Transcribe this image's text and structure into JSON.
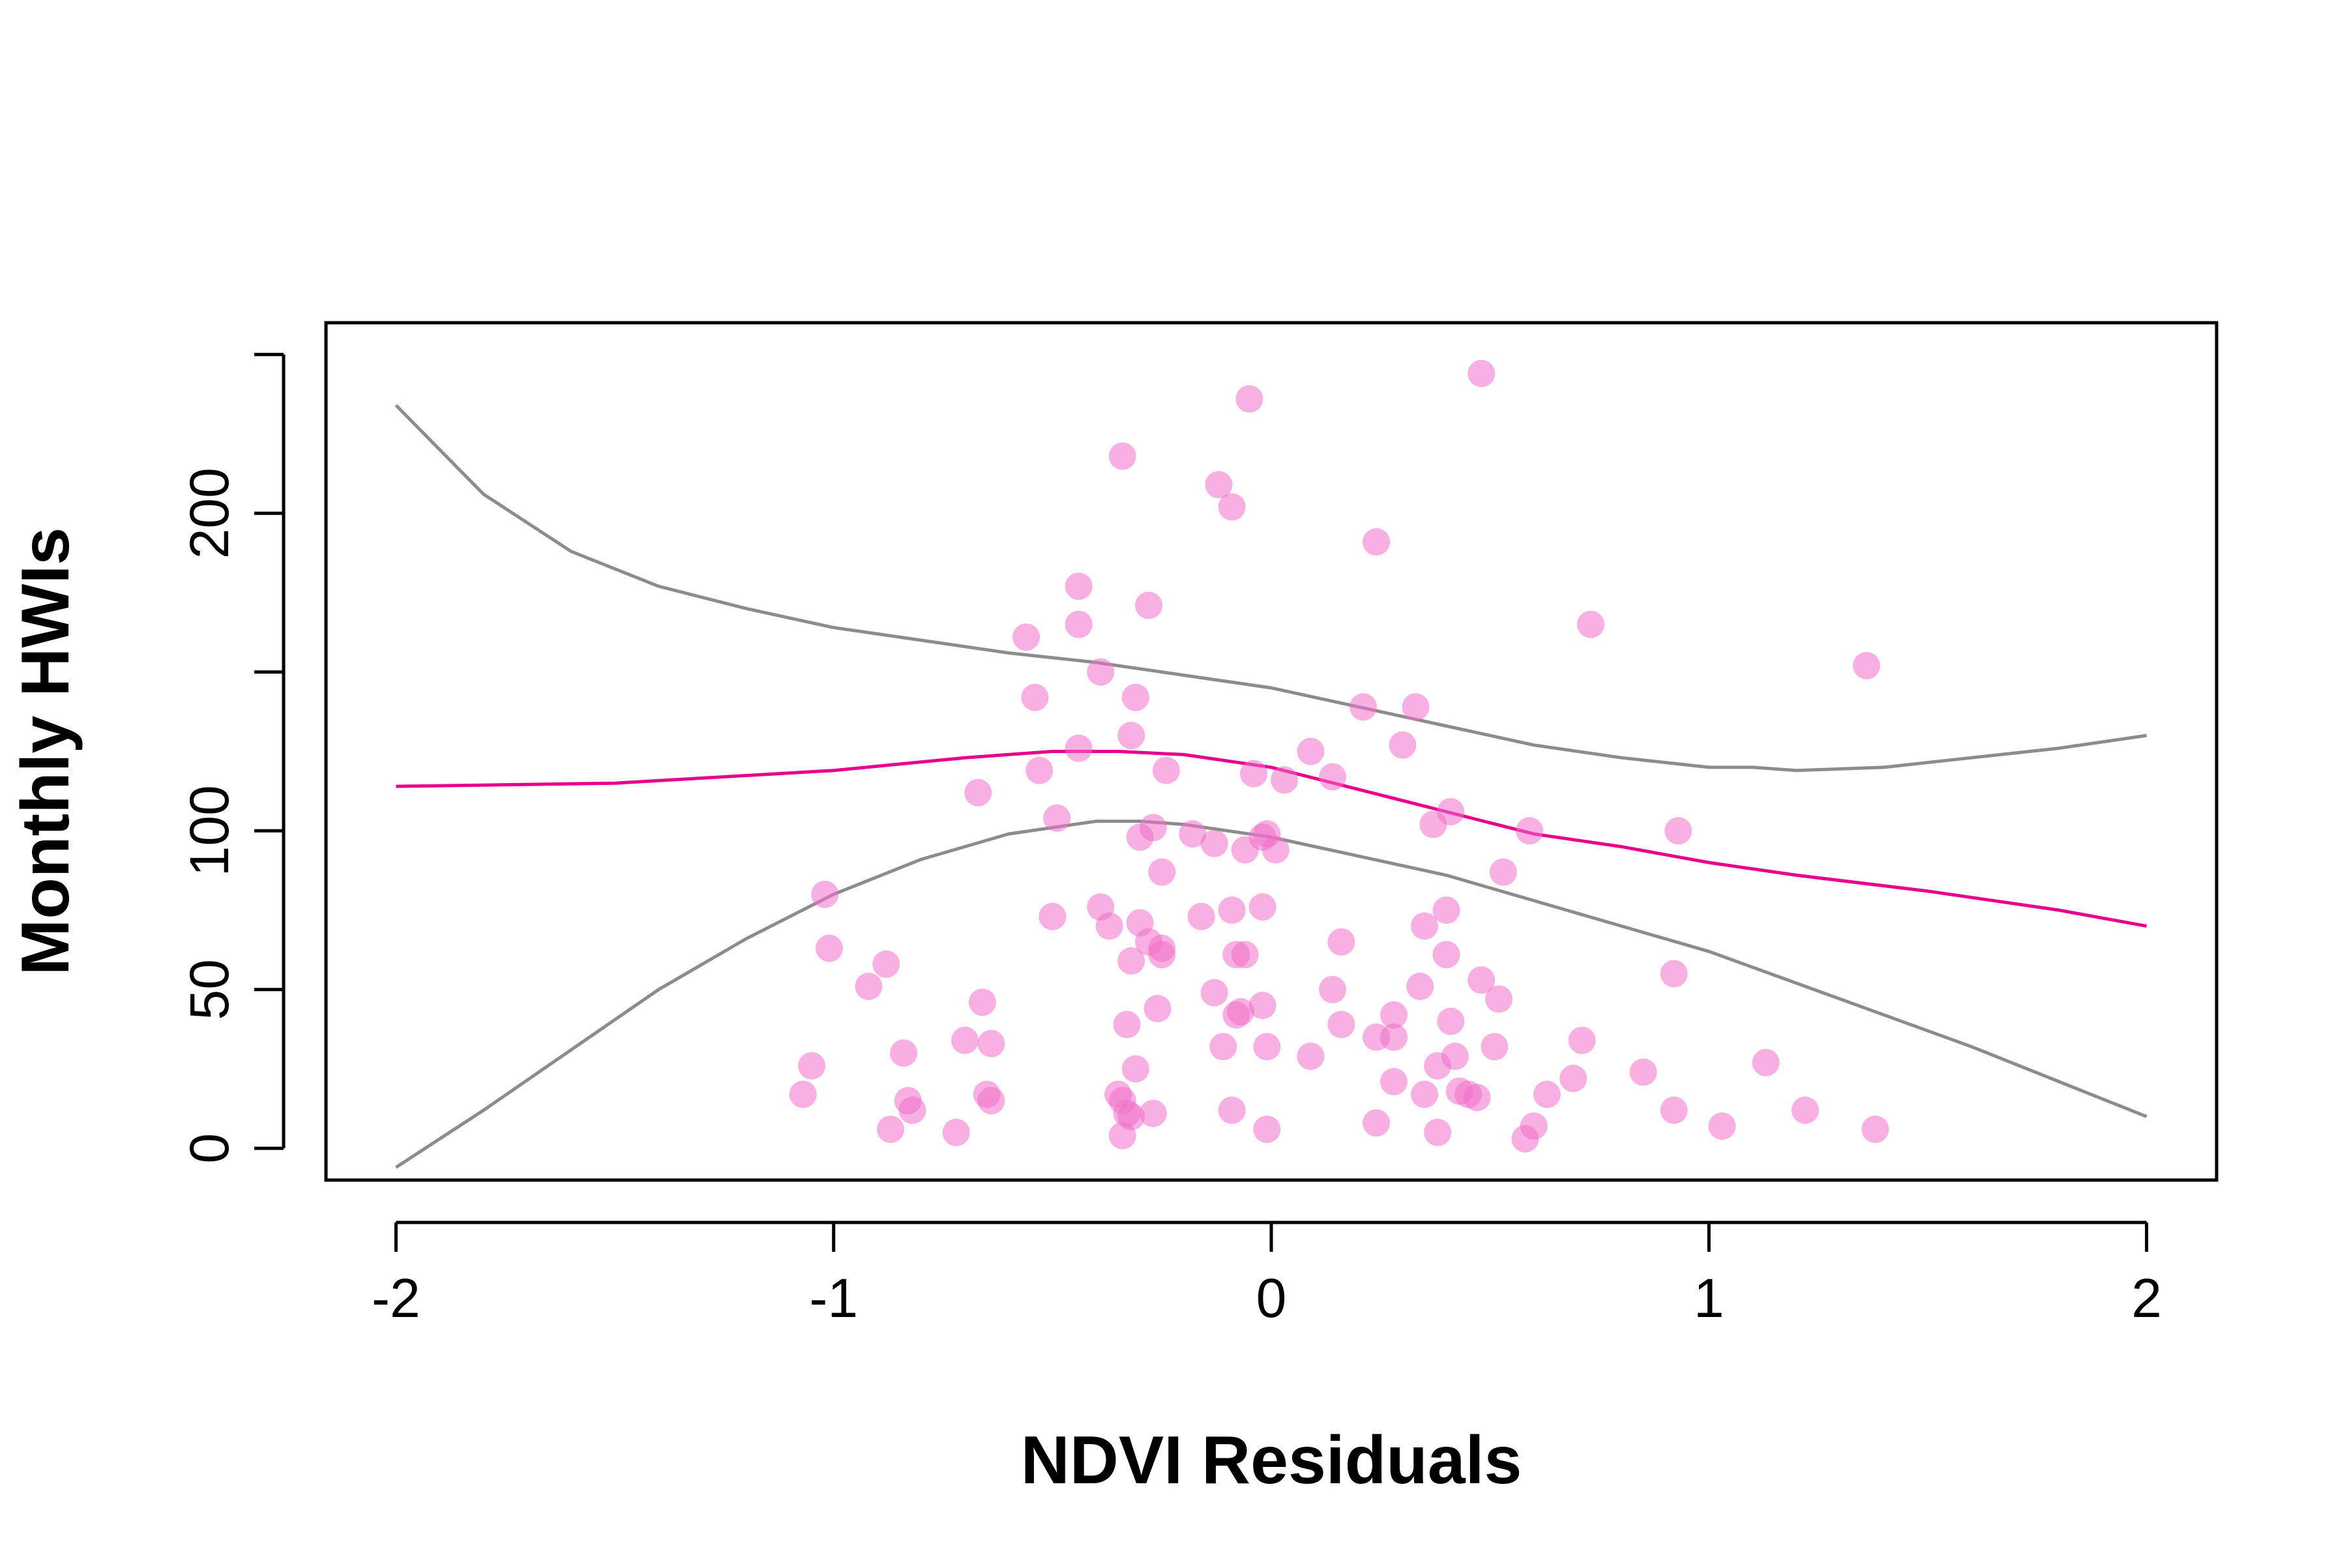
{
  "chart_data": {
    "type": "scatter",
    "title": "",
    "xlabel": "NDVI Residuals",
    "ylabel": "Monthly HWIs",
    "xlim": [
      -2.16,
      2.16
    ],
    "ylim": [
      -10,
      260
    ],
    "x_ticks": [
      {
        "value": -2,
        "label": "-2"
      },
      {
        "value": -1,
        "label": "-1"
      },
      {
        "value": 0,
        "label": "0"
      },
      {
        "value": 1,
        "label": "1"
      },
      {
        "value": 2,
        "label": "2"
      }
    ],
    "y_ticks": [
      {
        "value": 0,
        "label": "0"
      },
      {
        "value": 50,
        "label": "50"
      },
      {
        "value": 100,
        "label": "100"
      },
      {
        "value": 150,
        "label": ""
      },
      {
        "value": 200,
        "label": "200"
      },
      {
        "value": 250,
        "label": ""
      }
    ],
    "grid": false,
    "colors": {
      "points": "#f070c8",
      "fit_line": "#e8008c",
      "ci_band": "#8c8c8c",
      "axes": "#000000"
    },
    "series": [
      {
        "name": "observations",
        "kind": "scatter",
        "points": [
          [
            0.48,
            244
          ],
          [
            -0.05,
            236
          ],
          [
            -0.34,
            218
          ],
          [
            -0.12,
            209
          ],
          [
            -0.09,
            202
          ],
          [
            0.24,
            191
          ],
          [
            -0.44,
            177
          ],
          [
            -0.28,
            171
          ],
          [
            -0.44,
            165
          ],
          [
            0.73,
            165
          ],
          [
            -0.56,
            161
          ],
          [
            1.36,
            152
          ],
          [
            -0.39,
            150
          ],
          [
            -0.54,
            142
          ],
          [
            -0.31,
            142
          ],
          [
            0.21,
            139
          ],
          [
            0.33,
            139
          ],
          [
            -0.32,
            130
          ],
          [
            -0.44,
            126
          ],
          [
            0.09,
            125
          ],
          [
            0.3,
            127
          ],
          [
            -0.53,
            119
          ],
          [
            -0.24,
            119
          ],
          [
            0.14,
            117
          ],
          [
            -0.04,
            118
          ],
          [
            0.03,
            116
          ],
          [
            -0.67,
            112
          ],
          [
            -0.49,
            104
          ],
          [
            0.41,
            106
          ],
          [
            0.37,
            102
          ],
          [
            -0.3,
            98
          ],
          [
            -0.27,
            101
          ],
          [
            -0.18,
            99
          ],
          [
            -0.01,
            99
          ],
          [
            0.59,
            100
          ],
          [
            0.93,
            100
          ],
          [
            -0.13,
            96
          ],
          [
            -0.02,
            98
          ],
          [
            -0.06,
            94
          ],
          [
            0.01,
            94
          ],
          [
            -0.25,
            87
          ],
          [
            0.53,
            87
          ],
          [
            -1.02,
            80
          ],
          [
            -0.39,
            76
          ],
          [
            -0.09,
            75
          ],
          [
            -0.02,
            76
          ],
          [
            0.4,
            75
          ],
          [
            -0.5,
            73
          ],
          [
            -0.37,
            70
          ],
          [
            -0.3,
            71
          ],
          [
            -0.16,
            73
          ],
          [
            0.35,
            70
          ],
          [
            -1.01,
            63
          ],
          [
            -0.28,
            65
          ],
          [
            -0.25,
            63
          ],
          [
            0.16,
            65
          ],
          [
            -0.25,
            61
          ],
          [
            -0.08,
            61
          ],
          [
            -0.06,
            61
          ],
          [
            0.4,
            61
          ],
          [
            -0.88,
            58
          ],
          [
            -0.32,
            59
          ],
          [
            -0.92,
            51
          ],
          [
            -0.13,
            49
          ],
          [
            0.14,
            50
          ],
          [
            0.34,
            51
          ],
          [
            0.48,
            53
          ],
          [
            0.52,
            47
          ],
          [
            -0.66,
            46
          ],
          [
            -0.26,
            44
          ],
          [
            -0.08,
            42
          ],
          [
            -0.07,
            43
          ],
          [
            -0.02,
            45
          ],
          [
            0.16,
            39
          ],
          [
            0.28,
            42
          ],
          [
            0.41,
            40
          ],
          [
            -0.33,
            39
          ],
          [
            0.92,
            55
          ],
          [
            -0.7,
            34
          ],
          [
            -0.64,
            33
          ],
          [
            -0.84,
            30
          ],
          [
            -0.11,
            32
          ],
          [
            -0.01,
            32
          ],
          [
            0.09,
            29
          ],
          [
            0.24,
            35
          ],
          [
            0.28,
            35
          ],
          [
            0.42,
            29
          ],
          [
            0.51,
            32
          ],
          [
            0.71,
            34
          ],
          [
            -1.05,
            26
          ],
          [
            -0.31,
            25
          ],
          [
            0.38,
            26
          ],
          [
            0.85,
            24
          ],
          [
            1.13,
            27
          ],
          [
            -1.07,
            17
          ],
          [
            -0.83,
            15
          ],
          [
            -0.82,
            12
          ],
          [
            -0.65,
            17
          ],
          [
            -0.64,
            15
          ],
          [
            -0.35,
            17
          ],
          [
            -0.34,
            15
          ],
          [
            0.28,
            21
          ],
          [
            0.35,
            17
          ],
          [
            0.43,
            18
          ],
          [
            0.45,
            17
          ],
          [
            0.47,
            16
          ],
          [
            0.63,
            17
          ],
          [
            0.69,
            22
          ],
          [
            -0.87,
            6
          ],
          [
            -0.72,
            5
          ],
          [
            -0.33,
            11
          ],
          [
            -0.32,
            10
          ],
          [
            -0.27,
            11
          ],
          [
            -0.09,
            12
          ],
          [
            -0.01,
            6
          ],
          [
            0.24,
            8
          ],
          [
            0.38,
            5
          ],
          [
            0.58,
            3
          ],
          [
            0.6,
            7
          ],
          [
            0.92,
            12
          ],
          [
            1.03,
            7
          ],
          [
            1.22,
            12
          ],
          [
            1.38,
            6
          ],
          [
            -0.34,
            4
          ]
        ]
      },
      {
        "name": "fitted",
        "kind": "line",
        "points": [
          [
            -2.0,
            114
          ],
          [
            -1.5,
            115
          ],
          [
            -1.0,
            119
          ],
          [
            -0.7,
            123
          ],
          [
            -0.5,
            125
          ],
          [
            -0.35,
            125
          ],
          [
            -0.2,
            124
          ],
          [
            0.0,
            120
          ],
          [
            0.2,
            113
          ],
          [
            0.4,
            106
          ],
          [
            0.6,
            99
          ],
          [
            0.8,
            95
          ],
          [
            1.0,
            90
          ],
          [
            1.2,
            86
          ],
          [
            1.5,
            81
          ],
          [
            1.8,
            75
          ],
          [
            2.0,
            70
          ]
        ]
      },
      {
        "name": "upper_ci",
        "kind": "line",
        "points": [
          [
            -2.0,
            234
          ],
          [
            -1.8,
            206
          ],
          [
            -1.6,
            188
          ],
          [
            -1.4,
            177
          ],
          [
            -1.2,
            170
          ],
          [
            -1.0,
            164
          ],
          [
            -0.8,
            160
          ],
          [
            -0.6,
            156
          ],
          [
            -0.4,
            153
          ],
          [
            -0.2,
            149
          ],
          [
            0.0,
            145
          ],
          [
            0.2,
            139
          ],
          [
            0.4,
            133
          ],
          [
            0.6,
            127
          ],
          [
            0.8,
            123
          ],
          [
            1.0,
            120
          ],
          [
            1.1,
            120
          ],
          [
            1.2,
            119
          ],
          [
            1.4,
            120
          ],
          [
            1.6,
            123
          ],
          [
            1.8,
            126
          ],
          [
            2.0,
            130
          ]
        ]
      },
      {
        "name": "lower_ci",
        "kind": "line",
        "points": [
          [
            -2.0,
            -6
          ],
          [
            -1.8,
            12
          ],
          [
            -1.6,
            31
          ],
          [
            -1.4,
            50
          ],
          [
            -1.2,
            66
          ],
          [
            -1.0,
            80
          ],
          [
            -0.8,
            91
          ],
          [
            -0.6,
            99
          ],
          [
            -0.4,
            103
          ],
          [
            -0.3,
            103
          ],
          [
            -0.2,
            102
          ],
          [
            0.0,
            98
          ],
          [
            0.2,
            92
          ],
          [
            0.4,
            86
          ],
          [
            0.6,
            78
          ],
          [
            0.8,
            70
          ],
          [
            1.0,
            62
          ],
          [
            1.2,
            52
          ],
          [
            1.4,
            42
          ],
          [
            1.6,
            32
          ],
          [
            1.8,
            21
          ],
          [
            2.0,
            10
          ]
        ]
      }
    ]
  }
}
